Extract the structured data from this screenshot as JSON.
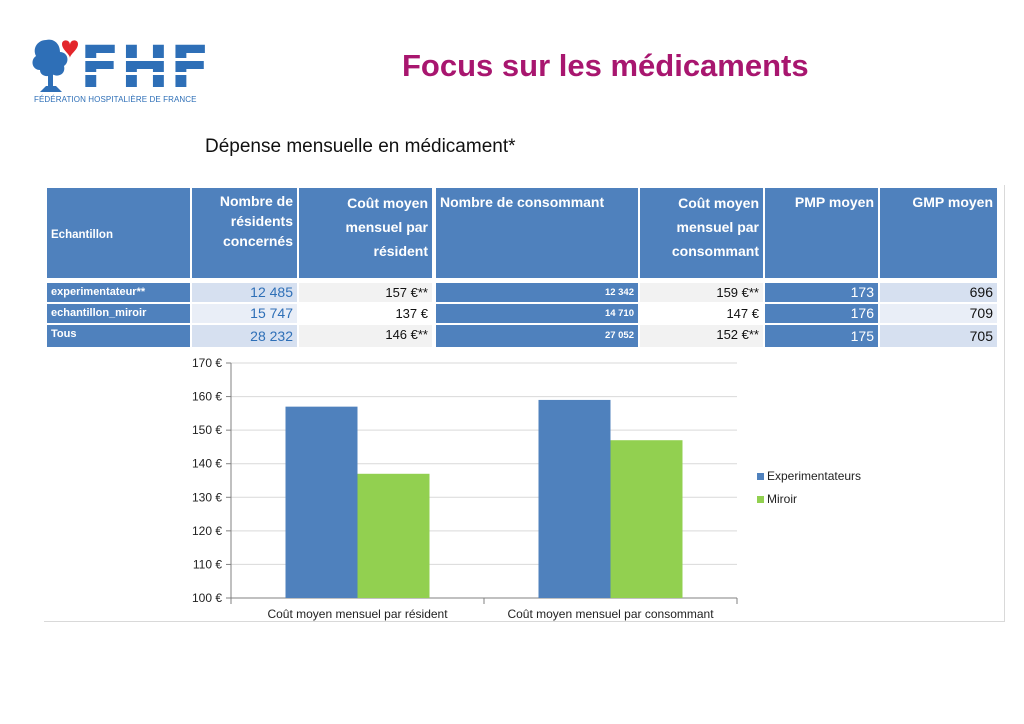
{
  "logo": {
    "letters": "FHF",
    "subtitle": "FÉDÉRATION HOSPITALIÈRE DE FRANCE",
    "colors": {
      "blue": "#2e6fb7",
      "red": "#e3262b"
    }
  },
  "header": {
    "title": "Focus sur les médicaments",
    "subtitle": "Dépense mensuelle en médicament*"
  },
  "table": {
    "headers": [
      "Echantillon",
      "Nombre de résidents concernés",
      "Coût moyen mensuel par résident",
      "Nombre de consommant",
      "Coût moyen mensuel par consommant",
      "PMP moyen",
      "GMP moyen"
    ],
    "rows": [
      {
        "label": "experimentateur**",
        "residents": "12 485",
        "cout_resident": "157 €**",
        "consommants": "12 342",
        "cout_consommant": "159 €**",
        "pmp": "173",
        "gmp": "696"
      },
      {
        "label": "echantillon_miroir",
        "residents": "15 747",
        "cout_resident": "137 €",
        "consommants": "14 710",
        "cout_consommant": "147 €",
        "pmp": "176",
        "gmp": "709"
      },
      {
        "label": "Tous",
        "residents": "28 232",
        "cout_resident": "146 €**",
        "consommants": "27 052",
        "cout_consommant": "152 €**",
        "pmp": "175",
        "gmp": "705"
      }
    ]
  },
  "chart_data": {
    "type": "bar",
    "categories": [
      "Coût moyen mensuel par résident",
      "Coût moyen mensuel par consommant"
    ],
    "series": [
      {
        "name": "Experimentateurs",
        "values": [
          157,
          159
        ],
        "color": "#4f81bd"
      },
      {
        "name": "Miroir",
        "values": [
          137,
          147
        ],
        "color": "#92d050"
      }
    ],
    "ylim": [
      100,
      170
    ],
    "yticks": [
      "100 €",
      "110 €",
      "120 €",
      "130 €",
      "140 €",
      "150 €",
      "160 €",
      "170 €"
    ],
    "ytick_values": [
      100,
      110,
      120,
      130,
      140,
      150,
      160,
      170
    ],
    "grid": true,
    "legend": "right"
  }
}
